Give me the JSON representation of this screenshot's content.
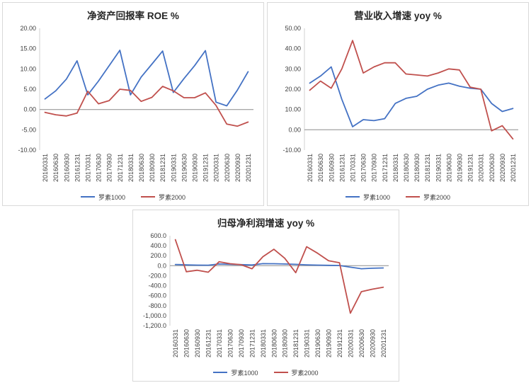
{
  "page": {
    "background": "#ffffff"
  },
  "chart_data": [
    {
      "type": "line",
      "title": "净资产回报率 ROE %",
      "legend_position": "bottom",
      "grid": false,
      "ylim": [
        -10,
        20
      ],
      "yticks": [
        {
          "v": 20,
          "label": "20.00"
        },
        {
          "v": 15,
          "label": "15.00"
        },
        {
          "v": 10,
          "label": "10.00"
        },
        {
          "v": 5,
          "label": "5.00"
        },
        {
          "v": 0,
          "label": "0.00"
        },
        {
          "v": -5,
          "label": "-5.00"
        },
        {
          "v": -10,
          "label": "-10.00"
        }
      ],
      "categories": [
        "20160331",
        "20160630",
        "20160930",
        "20161231",
        "20170331",
        "20170630",
        "20170930",
        "20171231",
        "20180331",
        "20180630",
        "20180930",
        "20181231",
        "20190331",
        "20190630",
        "20190930",
        "20191231",
        "20200331",
        "20200630",
        "20200930",
        "20201231"
      ],
      "series": [
        {
          "name": "罗素1000",
          "color": "#4472C4",
          "values": [
            2.6,
            4.6,
            7.5,
            12.0,
            3.6,
            7.0,
            10.8,
            14.6,
            3.6,
            8.0,
            11.2,
            14.4,
            4.2,
            7.6,
            10.8,
            14.5,
            1.8,
            0.9,
            4.8,
            9.3
          ]
        },
        {
          "name": "罗素2000",
          "color": "#C0504D",
          "values": [
            -0.7,
            -1.3,
            -1.6,
            -0.9,
            4.5,
            1.4,
            2.2,
            5.0,
            4.7,
            2.0,
            3.0,
            5.7,
            4.6,
            2.9,
            2.9,
            4.1,
            1.0,
            -3.6,
            -4.1,
            -3.1
          ]
        }
      ]
    },
    {
      "type": "line",
      "title": "营业收入增速 yoy %",
      "legend_position": "bottom",
      "grid": false,
      "ylim": [
        -10,
        50
      ],
      "yticks": [
        {
          "v": 50,
          "label": "50.00"
        },
        {
          "v": 40,
          "label": "40.00"
        },
        {
          "v": 30,
          "label": "30.00"
        },
        {
          "v": 20,
          "label": "20.00"
        },
        {
          "v": 10,
          "label": "10.00"
        },
        {
          "v": 0,
          "label": "0.00"
        },
        {
          "v": -10,
          "label": "-10.00"
        }
      ],
      "categories": [
        "20160331",
        "20160630",
        "20160930",
        "20161231",
        "20170331",
        "20170630",
        "20170930",
        "20171231",
        "20180331",
        "20180630",
        "20180930",
        "20181231",
        "20190331",
        "20190630",
        "20190930",
        "20191231",
        "20200331",
        "20200630",
        "20200930",
        "20201231"
      ],
      "series": [
        {
          "name": "罗素1000",
          "color": "#4472C4",
          "values": [
            23.0,
            26.5,
            31.0,
            15.0,
            1.5,
            5.0,
            4.5,
            5.5,
            13.0,
            15.5,
            16.5,
            20.0,
            22.0,
            23.0,
            21.5,
            20.5,
            20.0,
            13.0,
            9.0,
            10.5
          ]
        },
        {
          "name": "罗素2000",
          "color": "#C0504D",
          "values": [
            19.5,
            24.0,
            20.5,
            30.0,
            44.0,
            28.0,
            31.0,
            33.0,
            33.0,
            27.5,
            27.0,
            26.5,
            28.0,
            30.0,
            29.5,
            21.0,
            20.0,
            -0.5,
            2.0,
            -4.5
          ]
        }
      ]
    },
    {
      "type": "line",
      "title": "归母净利润增速 yoy %",
      "legend_position": "bottom",
      "grid": false,
      "ylim": [
        -1200,
        600
      ],
      "yticks": [
        {
          "v": 600,
          "label": "600.0"
        },
        {
          "v": 400,
          "label": "400.0"
        },
        {
          "v": 200,
          "label": "200.0"
        },
        {
          "v": 0,
          "label": "0.0"
        },
        {
          "v": -200,
          "label": "-200.0"
        },
        {
          "v": -400,
          "label": "-400.0"
        },
        {
          "v": -600,
          "label": "-600.0"
        },
        {
          "v": -800,
          "label": "-800.0"
        },
        {
          "v": -1000,
          "label": "-1,000.0"
        },
        {
          "v": -1200,
          "label": "-1,200.0"
        }
      ],
      "categories": [
        "20160331",
        "20160630",
        "20160930",
        "20161231",
        "20170331",
        "20170630",
        "20170930",
        "20171231",
        "20180331",
        "20180630",
        "20180930",
        "20181231",
        "20190331",
        "20190630",
        "20190930",
        "20191231",
        "20200331",
        "20200630",
        "20200930",
        "20201231"
      ],
      "series": [
        {
          "name": "罗素1000",
          "color": "#4472C4",
          "values": [
            25,
            18,
            12,
            10,
            35,
            28,
            22,
            15,
            42,
            40,
            35,
            28,
            18,
            12,
            8,
            5,
            -30,
            -60,
            -50,
            -45
          ]
        },
        {
          "name": "罗素2000",
          "color": "#C0504D",
          "values": [
            520,
            -120,
            -90,
            -130,
            80,
            40,
            20,
            -60,
            180,
            330,
            150,
            -140,
            380,
            250,
            100,
            60,
            -950,
            -520,
            -470,
            -430
          ]
        }
      ]
    }
  ]
}
